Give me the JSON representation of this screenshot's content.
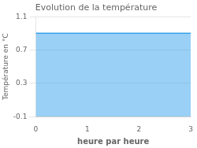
{
  "chart_data": {
    "type": "area",
    "title": "Evolution de la température",
    "xlabel": "heure par heure",
    "ylabel": "Température en °C",
    "x": [
      0,
      3
    ],
    "values": [
      0.9,
      0.9
    ],
    "xlim": [
      0,
      3
    ],
    "ylim": [
      -0.1,
      1.1
    ],
    "xticks": [
      0,
      1,
      2,
      3
    ],
    "yticks": [
      -0.1,
      0.3,
      0.7,
      1.1
    ],
    "grid": "y"
  }
}
